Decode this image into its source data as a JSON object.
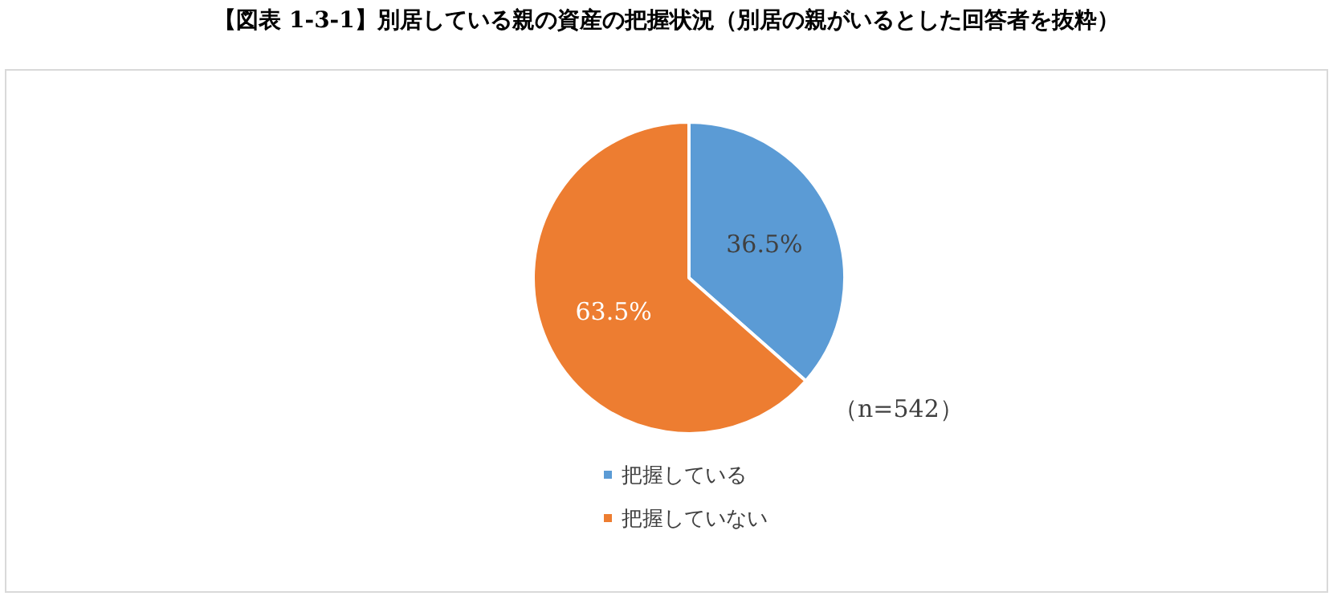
{
  "chart_data": {
    "type": "pie",
    "title": "【図表 1-3-1】別居している親の資産の把握状況（別居の親がいるとした回答者を抜粋）",
    "categories": [
      "把握している",
      "把握していない"
    ],
    "values": [
      36.5,
      63.5
    ],
    "colors": [
      "#5b9bd5",
      "#ed7d31"
    ],
    "value_labels": [
      "36.5%",
      "63.5%"
    ],
    "annotations": [
      "（n=542）"
    ],
    "legend": "bottom"
  }
}
